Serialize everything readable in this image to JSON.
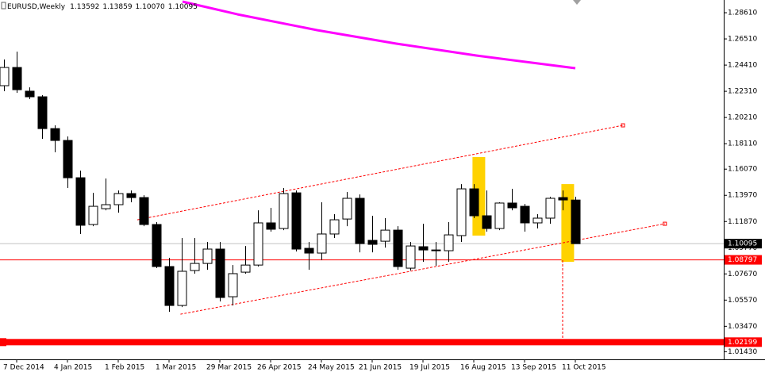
{
  "chart_data": {
    "type": "candlestick",
    "symbol": "EURUSD,Weekly",
    "ohlc_header": [
      "1.13592",
      "1.13859",
      "1.10070",
      "1.10095"
    ],
    "categories": [
      null,
      "7 Dec 2014",
      null,
      null,
      null,
      "4 Jan 2015",
      null,
      null,
      null,
      "1 Feb 2015",
      null,
      null,
      null,
      "1 Mar 2015",
      null,
      null,
      null,
      "29 Mar 2015",
      null,
      null,
      null,
      "26 Apr 2015",
      null,
      null,
      null,
      "24 May 2015",
      null,
      null,
      null,
      "21 Jun 2015",
      null,
      null,
      null,
      "19 Jul 2015",
      null,
      null,
      null,
      "16 Aug 2015",
      null,
      null,
      null,
      "13 Sep 2015",
      null,
      null,
      null,
      "11 Oct 2015"
    ],
    "open": [
      1.2276,
      1.2422,
      1.2232,
      1.2187,
      1.1932,
      1.1837,
      1.1538,
      1.1163,
      1.129,
      1.1322,
      1.1411,
      1.1379,
      1.1163,
      1.0826,
      1.0514,
      1.0794,
      1.0851,
      1.0966,
      1.0584,
      1.0781,
      1.0838,
      1.1176,
      1.1131,
      1.1417,
      1.0972,
      1.0934,
      1.1087,
      1.1207,
      1.1373,
      1.1036,
      1.1029,
      1.1118,
      1.0813,
      1.0985,
      1.0959,
      1.0953,
      1.1074,
      1.1449,
      1.1233,
      1.1131,
      1.1335,
      1.1309,
      1.1176,
      1.1214,
      1.1379,
      1.13592
    ],
    "high": [
      1.2486,
      1.2549,
      1.2263,
      1.22,
      1.1958,
      1.1869,
      1.1595,
      1.1417,
      1.1532,
      1.1436,
      1.1436,
      1.1398,
      1.1182,
      1.0896,
      1.1055,
      1.1055,
      1.1023,
      1.1023,
      1.0838,
      1.0991,
      1.1277,
      1.1297,
      1.1456,
      1.1436,
      1.1023,
      1.1341,
      1.1246,
      1.1424,
      1.1404,
      1.1233,
      1.1214,
      1.115,
      1.1023,
      1.1169,
      1.1023,
      1.1182,
      1.1487,
      1.1487,
      1.1436,
      1.1341,
      1.1449,
      1.1328,
      1.1246,
      1.1386,
      1.1436,
      1.13859
    ],
    "low": [
      1.2232,
      1.2219,
      1.2168,
      1.185,
      1.1742,
      1.1456,
      1.1087,
      1.115,
      1.1277,
      1.1258,
      1.1341,
      1.115,
      1.0813,
      1.0463,
      1.0501,
      1.0769,
      1.08,
      1.0546,
      1.0514,
      1.0769,
      1.0826,
      1.1106,
      1.1118,
      1.0947,
      1.08,
      1.0877,
      1.1055,
      1.115,
      1.094,
      1.094,
      1.0978,
      1.08,
      1.0794,
      1.0864,
      1.0832,
      1.0864,
      1.1023,
      1.1214,
      1.1106,
      1.1118,
      1.1277,
      1.1106,
      1.1131,
      1.1169,
      1.1277,
      1.1007
    ],
    "close": [
      1.2422,
      1.2244,
      1.2187,
      1.1932,
      1.1837,
      1.1538,
      1.1157,
      1.1309,
      1.1322,
      1.1411,
      1.1379,
      1.1163,
      1.0826,
      1.0514,
      1.0788,
      1.0851,
      1.0966,
      1.0578,
      1.0769,
      1.0838,
      1.1176,
      1.1125,
      1.1411,
      1.0966,
      1.0934,
      1.1087,
      1.1201,
      1.1373,
      1.101,
      1.1004,
      1.1118,
      1.0826,
      1.0991,
      1.0959,
      1.0953,
      1.108,
      1.1449,
      1.1233,
      1.1131,
      1.1335,
      1.1297,
      1.1176,
      1.1214,
      1.1373,
      1.136,
      1.10095
    ],
    "bull_color": "#ffffff",
    "bear_color": "#000000",
    "ylim": [
      1.0082,
      1.2963
    ],
    "yticks": [
      {
        "value": 1.2861,
        "label": "1.28610"
      },
      {
        "value": 1.2651,
        "label": "1.26510"
      },
      {
        "value": 1.2441,
        "label": "1.24410"
      },
      {
        "value": 1.2231,
        "label": "1.22310"
      },
      {
        "value": 1.2021,
        "label": "1.20210"
      },
      {
        "value": 1.1811,
        "label": "1.18110"
      },
      {
        "value": 1.1607,
        "label": "1.16070"
      },
      {
        "value": 1.1397,
        "label": "1.13970"
      },
      {
        "value": 1.1187,
        "label": "1.11870"
      },
      {
        "value": 1.0977,
        "label": "1.09770"
      },
      {
        "value": 1.0767,
        "label": "1.07670"
      },
      {
        "value": 1.0557,
        "label": "1.05570"
      },
      {
        "value": 1.0347,
        "label": "1.03470"
      },
      {
        "value": 1.0143,
        "label": "1.01430"
      }
    ],
    "grid": false,
    "moving_average": {
      "color": "#ff00ff",
      "x": [
        14.06,
        18.4,
        24.7,
        30.9,
        37.2,
        45
      ],
      "values": [
        1.295,
        1.2848,
        1.2721,
        1.2613,
        1.2518,
        1.2416
      ]
    },
    "trendlines": [
      {
        "color": "#ff0000",
        "x": [
          10.5,
          48.75
        ],
        "values": [
          1.1201,
          1.1958
        ]
      },
      {
        "color": "#ff0000",
        "x": [
          13.9,
          52.05
        ],
        "values": [
          1.0444,
          1.1169
        ]
      }
    ],
    "highlights": [
      {
        "color": "#ffd200",
        "x": 37.4,
        "values": [
          1.1704,
          1.1074
        ]
      },
      {
        "color": "#ffd200",
        "x": 44.4,
        "values": [
          1.1487,
          1.0864
        ]
      }
    ],
    "vline": {
      "color": "#ff0000",
      "x": 44,
      "values": [
        1.0877,
        1.0228
      ]
    },
    "levels": [
      {
        "value": 1.10095,
        "label": "1.10095",
        "color": "#c0c0c0",
        "label_color": "#000000",
        "thick": false
      },
      {
        "value": 1.08797,
        "label": "1.08797",
        "color": "#ff0000",
        "label_color": "#ff0000",
        "thick": false
      },
      {
        "value": 1.02199,
        "label": "1.02199",
        "color": "#ff0000",
        "label_color": "#ff0000",
        "thick": true
      }
    ]
  }
}
